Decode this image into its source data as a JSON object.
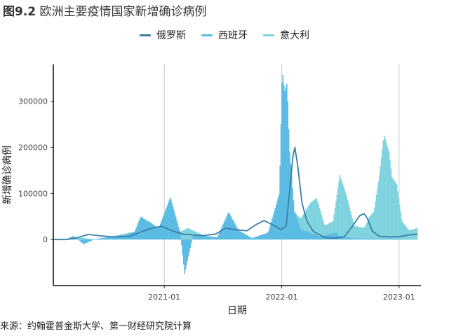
{
  "header": {
    "figure_number": "图9.2",
    "title": "欧洲主要疫情国家新增确诊病例"
  },
  "footer": {
    "source": "来源：约翰霍普金斯大学、第一财经研究院计算"
  },
  "chart_data": {
    "type": "line",
    "title": "欧洲主要疫情国家新增确诊病例",
    "xlabel": "日期",
    "ylabel": "新增确诊病例",
    "legend_position": "top",
    "grid": "vertical gridlines at x ticks only",
    "xlim": [
      "2020-01-22",
      "2023-03-10"
    ],
    "ylim": [
      -100000,
      380000
    ],
    "x_ticks": [
      "2021-01",
      "2022-01",
      "2023-01"
    ],
    "y_ticks": [
      0,
      100000,
      200000,
      300000
    ],
    "series": [
      {
        "name": "俄罗斯",
        "color": "#3a7ea6",
        "style": "line",
        "points": [
          [
            "2020-01-22",
            0
          ],
          [
            "2020-03-01",
            0
          ],
          [
            "2020-04-01",
            3000
          ],
          [
            "2020-05-10",
            11000
          ],
          [
            "2020-06-15",
            8000
          ],
          [
            "2020-08-01",
            5500
          ],
          [
            "2020-09-15",
            7000
          ],
          [
            "2020-10-15",
            15000
          ],
          [
            "2020-11-20",
            24000
          ],
          [
            "2020-12-24",
            29000
          ],
          [
            "2021-01-25",
            19000
          ],
          [
            "2021-03-01",
            11500
          ],
          [
            "2021-05-01",
            8500
          ],
          [
            "2021-06-10",
            12000
          ],
          [
            "2021-07-10",
            24500
          ],
          [
            "2021-08-15",
            21000
          ],
          [
            "2021-09-15",
            19000
          ],
          [
            "2021-10-15",
            33000
          ],
          [
            "2021-11-07",
            41000
          ],
          [
            "2021-12-01",
            33000
          ],
          [
            "2021-12-31",
            21000
          ],
          [
            "2022-01-15",
            30000
          ],
          [
            "2022-01-25",
            100000
          ],
          [
            "2022-02-05",
            180000
          ],
          [
            "2022-02-11",
            200000
          ],
          [
            "2022-02-20",
            160000
          ],
          [
            "2022-03-05",
            80000
          ],
          [
            "2022-03-20",
            40000
          ],
          [
            "2022-04-10",
            17000
          ],
          [
            "2022-05-15",
            4500
          ],
          [
            "2022-06-15",
            3000
          ],
          [
            "2022-07-15",
            6000
          ],
          [
            "2022-08-10",
            30000
          ],
          [
            "2022-09-01",
            52000
          ],
          [
            "2022-09-15",
            56000
          ],
          [
            "2022-09-25",
            45000
          ],
          [
            "2022-10-10",
            18000
          ],
          [
            "2022-11-01",
            7000
          ],
          [
            "2022-12-01",
            5500
          ],
          [
            "2023-01-01",
            6000
          ],
          [
            "2023-02-01",
            10000
          ],
          [
            "2023-02-28",
            12000
          ]
        ]
      },
      {
        "name": "西班牙",
        "color": "#5bbbe3",
        "style": "spikes",
        "points": [
          [
            "2020-03-01",
            0
          ],
          [
            "2020-03-25",
            8000
          ],
          [
            "2020-04-25",
            -10000
          ],
          [
            "2020-06-01",
            1000
          ],
          [
            "2020-08-01",
            8000
          ],
          [
            "2020-09-01",
            12000
          ],
          [
            "2020-10-01",
            17000
          ],
          [
            "2020-10-20",
            50000
          ],
          [
            "2020-11-10",
            40000
          ],
          [
            "2020-12-15",
            25000
          ],
          [
            "2021-01-20",
            92000
          ],
          [
            "2021-02-20",
            15000
          ],
          [
            "2021-03-05",
            -75000
          ],
          [
            "2021-04-01",
            10000
          ],
          [
            "2021-05-01",
            8000
          ],
          [
            "2021-06-15",
            5000
          ],
          [
            "2021-07-20",
            60000
          ],
          [
            "2021-08-20",
            20000
          ],
          [
            "2021-10-01",
            3000
          ],
          [
            "2021-11-20",
            15000
          ],
          [
            "2021-12-25",
            100000
          ],
          [
            "2022-01-03",
            372000
          ],
          [
            "2022-01-10",
            320000
          ],
          [
            "2022-01-18",
            340000
          ],
          [
            "2022-01-25",
            200000
          ],
          [
            "2022-02-10",
            60000
          ],
          [
            "2022-03-01",
            22000
          ],
          [
            "2022-04-01",
            14000
          ],
          [
            "2022-05-01",
            6000
          ],
          [
            "2022-06-01",
            12000
          ],
          [
            "2022-06-20",
            15000
          ],
          [
            "2022-07-01",
            5000
          ],
          [
            "2022-09-01",
            2000
          ],
          [
            "2022-12-01",
            2000
          ],
          [
            "2023-02-28",
            1000
          ]
        ]
      },
      {
        "name": "意大利",
        "color": "#7fd3df",
        "style": "spikes",
        "points": [
          [
            "2020-03-01",
            0
          ],
          [
            "2020-03-20",
            6000
          ],
          [
            "2020-04-15",
            4000
          ],
          [
            "2020-06-01",
            500
          ],
          [
            "2020-09-01",
            1500
          ],
          [
            "2020-10-15",
            10000
          ],
          [
            "2020-11-15",
            40000
          ],
          [
            "2020-12-15",
            22000
          ],
          [
            "2021-01-15",
            18000
          ],
          [
            "2021-02-15",
            15000
          ],
          [
            "2021-03-15",
            25000
          ],
          [
            "2021-04-15",
            15000
          ],
          [
            "2021-05-15",
            6000
          ],
          [
            "2021-06-15",
            1500
          ],
          [
            "2021-07-20",
            5000
          ],
          [
            "2021-08-15",
            7000
          ],
          [
            "2021-10-01",
            3000
          ],
          [
            "2021-11-15",
            10000
          ],
          [
            "2021-12-15",
            30000
          ],
          [
            "2022-01-10",
            220000
          ],
          [
            "2022-01-20",
            190000
          ],
          [
            "2022-02-10",
            60000
          ],
          [
            "2022-03-01",
            45000
          ],
          [
            "2022-04-01",
            80000
          ],
          [
            "2022-04-20",
            90000
          ],
          [
            "2022-05-15",
            30000
          ],
          [
            "2022-06-10",
            40000
          ],
          [
            "2022-07-01",
            140000
          ],
          [
            "2022-07-20",
            100000
          ],
          [
            "2022-08-15",
            30000
          ],
          [
            "2022-09-15",
            25000
          ],
          [
            "2022-10-01",
            50000
          ],
          [
            "2022-10-15",
            60000
          ],
          [
            "2022-11-01",
            140000
          ],
          [
            "2022-11-15",
            228000
          ],
          [
            "2022-12-01",
            190000
          ],
          [
            "2022-12-10",
            135000
          ],
          [
            "2022-12-25",
            120000
          ],
          [
            "2023-01-10",
            40000
          ],
          [
            "2023-02-01",
            20000
          ],
          [
            "2023-02-28",
            25000
          ]
        ]
      }
    ]
  }
}
